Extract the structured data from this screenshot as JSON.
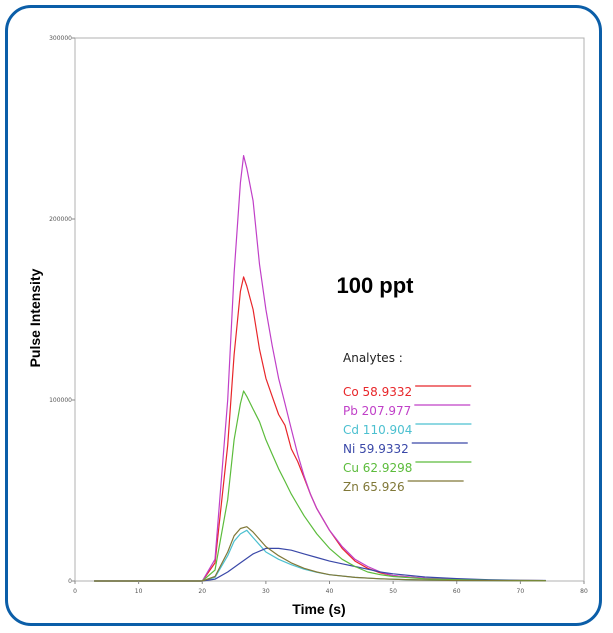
{
  "chart_data": {
    "type": "line",
    "title": "",
    "annotation": "100 ppt",
    "xlabel": "Time (s)",
    "ylabel": "Pulse Intensity",
    "xlim": [
      0,
      80
    ],
    "ylim": [
      0,
      300000
    ],
    "x_ticks": [
      "0",
      "10",
      "20",
      "30",
      "40",
      "50",
      "60",
      "70",
      "80"
    ],
    "y_ticks": [
      "0",
      "100000",
      "200000",
      "300000"
    ],
    "grid": false,
    "legend_title": "Analytes :",
    "legend_placement": "right",
    "series": [
      {
        "name": "Co 58.9332",
        "color": "#e8262a",
        "x": [
          3,
          20,
          22,
          24,
          25,
          26,
          26.5,
          27,
          28,
          29,
          30,
          31,
          32,
          33,
          34,
          35,
          36,
          37,
          38,
          40,
          42,
          44,
          46,
          48,
          50,
          55,
          60,
          65,
          70,
          74
        ],
        "y": [
          0,
          0,
          10000,
          75000,
          125000,
          160000,
          168000,
          163000,
          150000,
          128000,
          112000,
          102000,
          92000,
          86000,
          73000,
          66000,
          57000,
          48000,
          40000,
          28000,
          18000,
          11000,
          7000,
          4500,
          3000,
          1500,
          800,
          500,
          300,
          200
        ]
      },
      {
        "name": "Pb 207.977",
        "color": "#c040c8",
        "x": [
          3,
          20,
          22,
          24,
          25,
          26,
          26.5,
          27,
          28,
          29,
          30,
          31,
          32,
          33,
          34,
          35,
          36,
          37,
          38,
          40,
          42,
          44,
          46,
          48,
          50,
          55,
          60,
          65,
          70,
          74
        ],
        "y": [
          0,
          0,
          12000,
          100000,
          170000,
          220000,
          235000,
          228000,
          210000,
          175000,
          150000,
          130000,
          112000,
          98000,
          84000,
          70000,
          58000,
          48000,
          40000,
          28000,
          19000,
          12000,
          8000,
          5000,
          3000,
          1500,
          800,
          500,
          300,
          200
        ]
      },
      {
        "name": "Cd 110.904",
        "color": "#4cc0d0",
        "x": [
          3,
          20,
          22,
          24,
          25,
          26,
          27,
          28,
          29,
          30,
          32,
          34,
          36,
          38,
          40,
          44,
          48,
          52,
          56,
          60,
          65,
          70,
          74
        ],
        "y": [
          0,
          0,
          2000,
          14000,
          22000,
          26000,
          28000,
          24000,
          20000,
          16000,
          12000,
          9000,
          6500,
          4800,
          3500,
          2000,
          1200,
          800,
          500,
          300,
          200,
          100,
          100
        ]
      },
      {
        "name": "Ni 59.9332",
        "color": "#3a48a8",
        "x": [
          3,
          20,
          22,
          24,
          26,
          28,
          30,
          32,
          34,
          36,
          38,
          40,
          42,
          44,
          46,
          48,
          50,
          55,
          60,
          65,
          70,
          74
        ],
        "y": [
          0,
          0,
          1000,
          5000,
          10000,
          15000,
          18000,
          18000,
          17000,
          15000,
          13000,
          11000,
          9500,
          8000,
          6500,
          5000,
          4000,
          2200,
          1300,
          700,
          400,
          300
        ]
      },
      {
        "name": "Cu 62.9298",
        "color": "#5cbc3c",
        "x": [
          3,
          20,
          22,
          24,
          25,
          26,
          26.5,
          27,
          28,
          29,
          30,
          31,
          32,
          33,
          34,
          35,
          36,
          38,
          40,
          42,
          44,
          46,
          48,
          50,
          55,
          60,
          65,
          70,
          74
        ],
        "y": [
          0,
          0,
          6000,
          45000,
          78000,
          98000,
          105000,
          102000,
          95000,
          88000,
          78000,
          70000,
          62000,
          55000,
          48000,
          42000,
          36000,
          26000,
          18000,
          12000,
          8000,
          5000,
          3500,
          2500,
          1200,
          700,
          400,
          300,
          200
        ]
      },
      {
        "name": "Zn 65.926",
        "color": "#807838",
        "x": [
          3,
          20,
          22,
          24,
          25,
          26,
          27,
          28,
          29,
          30,
          32,
          34,
          36,
          38,
          40,
          44,
          48,
          52,
          56,
          60,
          65,
          70,
          74
        ],
        "y": [
          0,
          0,
          2500,
          16000,
          25000,
          29000,
          30000,
          27000,
          23000,
          19000,
          14000,
          10000,
          7000,
          5000,
          3500,
          2000,
          1200,
          800,
          500,
          300,
          200,
          100,
          100
        ]
      }
    ]
  }
}
